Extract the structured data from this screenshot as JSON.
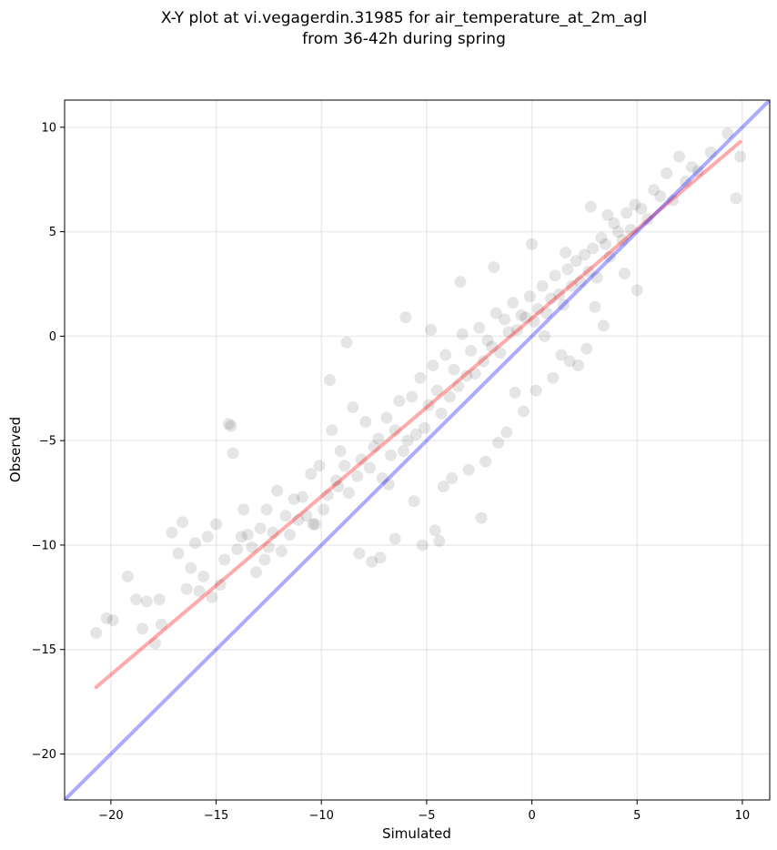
{
  "chart_data": {
    "type": "scatter",
    "title_lines": [
      "X-Y plot at vi.vegagerdin.31985 for air_temperature_at_2m_agl",
      "from 36-42h during spring"
    ],
    "xlabel": "Simulated",
    "ylabel": "Observed",
    "xlim": [
      -22.2,
      11.3
    ],
    "ylim": [
      -22.2,
      11.3
    ],
    "xticks": [
      -20,
      -15,
      -10,
      -5,
      0,
      5,
      10
    ],
    "yticks": [
      -20,
      -15,
      -10,
      -5,
      0,
      5,
      10
    ],
    "tick_labels": {
      "x": [
        "−20",
        "−15",
        "−10",
        "−5",
        "0",
        "5",
        "10"
      ],
      "y": [
        "−20",
        "−15",
        "−10",
        "−5",
        "0",
        "5",
        "10"
      ]
    },
    "grid": true,
    "colors": {
      "points": "#000000",
      "fit_line": "#ff0000",
      "identity_line": "#0000ff"
    },
    "series": [
      {
        "kind": "points",
        "x": [
          -20.7,
          -20.2,
          -19.9,
          -19.2,
          -18.8,
          -18.5,
          -18.3,
          -17.9,
          -17.7,
          -17.6,
          -17.1,
          -16.8,
          -16.6,
          -16.4,
          -16.2,
          -16.0,
          -15.8,
          -15.6,
          -15.4,
          -15.2,
          -15.0,
          -14.8,
          -14.6,
          -14.3,
          -14.2,
          -14.0,
          -13.7,
          -13.5,
          -13.3,
          -13.1,
          -12.9,
          -12.7,
          -12.5,
          -12.3,
          -12.1,
          -11.9,
          -11.7,
          -11.5,
          -11.3,
          -11.1,
          -10.9,
          -10.7,
          -10.5,
          -10.3,
          -10.1,
          -9.9,
          -9.7,
          -9.5,
          -9.3,
          -9.1,
          -8.9,
          -8.7,
          -8.5,
          -8.3,
          -8.1,
          -7.9,
          -7.7,
          -7.5,
          -7.3,
          -7.1,
          -6.9,
          -6.7,
          -6.5,
          -6.3,
          -6.1,
          -5.9,
          -5.7,
          -5.5,
          -5.3,
          -5.1,
          -4.9,
          -4.7,
          -4.5,
          -4.3,
          -4.1,
          -3.9,
          -3.7,
          -3.5,
          -3.3,
          -3.1,
          -2.9,
          -2.7,
          -2.5,
          -2.3,
          -2.1,
          -1.9,
          -1.7,
          -1.5,
          -1.3,
          -1.1,
          -0.9,
          -0.7,
          -0.5,
          -0.3,
          -0.1,
          0.1,
          0.3,
          0.5,
          0.7,
          0.9,
          1.1,
          1.3,
          1.5,
          1.7,
          1.9,
          2.1,
          2.3,
          2.5,
          2.7,
          2.9,
          3.1,
          3.3,
          3.5,
          3.7,
          3.9,
          4.1,
          4.3,
          4.5,
          4.7,
          4.9,
          5.2,
          5.5,
          5.8,
          6.1,
          6.4,
          6.7,
          7.0,
          7.3,
          7.6,
          7.9,
          8.5,
          9.3,
          9.7,
          9.9,
          -9.6,
          -8.8,
          -7.6,
          -6.5,
          -5.2,
          -4.6,
          -3.8,
          -2.4,
          -1.6,
          -0.8,
          0.6,
          1.8,
          2.6,
          3.4,
          -12.6,
          -10.4,
          -8.2,
          -6.8,
          -5.6,
          -4.2,
          -3.0,
          -1.2,
          0.2,
          1.4,
          -14.4,
          -13.8,
          -9.2,
          -7.2,
          -4.4,
          -2.2,
          -0.4,
          1.0,
          2.2,
          3.0,
          -6.0,
          -4.8,
          -3.4,
          -1.8,
          0.0,
          1.6,
          2.8,
          3.6,
          4.4,
          5.0
        ],
        "y": [
          -14.2,
          -13.5,
          -13.6,
          -11.5,
          -12.6,
          -14.0,
          -12.7,
          -14.7,
          -12.6,
          -13.8,
          -9.4,
          -10.4,
          -8.9,
          -12.1,
          -11.1,
          -9.9,
          -12.2,
          -11.5,
          -9.6,
          -12.5,
          -9.0,
          -11.9,
          -10.7,
          -4.3,
          -5.6,
          -10.2,
          -8.3,
          -9.5,
          -10.1,
          -11.3,
          -9.2,
          -10.7,
          -10.1,
          -9.4,
          -7.4,
          -10.3,
          -8.6,
          -9.5,
          -7.8,
          -8.8,
          -7.7,
          -8.6,
          -6.6,
          -9.0,
          -6.2,
          -8.3,
          -7.6,
          -4.5,
          -6.9,
          -5.5,
          -6.2,
          -7.5,
          -3.4,
          -6.7,
          -5.9,
          -4.1,
          -6.3,
          -5.3,
          -4.9,
          -6.8,
          -3.9,
          -5.7,
          -4.5,
          -3.1,
          -5.5,
          -5.0,
          -2.9,
          -4.7,
          -2.0,
          -4.4,
          -3.3,
          -1.4,
          -2.6,
          -3.7,
          -0.9,
          -2.9,
          -1.6,
          -2.4,
          0.1,
          -1.9,
          -0.7,
          -1.8,
          0.4,
          -1.2,
          -0.2,
          -0.5,
          1.1,
          -0.8,
          0.8,
          0.2,
          1.6,
          0.3,
          1.0,
          0.9,
          1.9,
          0.7,
          1.3,
          2.4,
          1.1,
          1.8,
          2.9,
          2.0,
          1.5,
          3.2,
          2.4,
          3.6,
          2.6,
          3.9,
          3.1,
          4.2,
          2.8,
          4.7,
          4.4,
          3.8,
          5.4,
          5.0,
          4.6,
          5.9,
          5.1,
          6.3,
          6.1,
          5.6,
          7.0,
          6.7,
          7.8,
          6.5,
          8.6,
          7.4,
          8.1,
          7.9,
          8.8,
          9.7,
          6.6,
          8.6,
          -2.1,
          -0.3,
          -10.8,
          -9.7,
          -10.0,
          -9.3,
          -6.8,
          -8.7,
          -5.1,
          -2.7,
          0.0,
          -1.2,
          -0.6,
          0.5,
          -8.3,
          -9.0,
          -10.4,
          -7.1,
          -7.9,
          -7.2,
          -6.4,
          -4.6,
          -2.6,
          -0.9,
          -4.2,
          -9.6,
          -7.2,
          -10.6,
          -9.8,
          -6.0,
          -3.6,
          -2.0,
          -1.4,
          1.4,
          0.9,
          0.3,
          2.6,
          3.3,
          4.4,
          4.0,
          6.2,
          5.8,
          3.0,
          2.2
        ]
      },
      {
        "kind": "fit_line",
        "x": [
          -20.7,
          9.9
        ],
        "y": [
          -16.8,
          9.3
        ]
      },
      {
        "kind": "identity_line",
        "x": [
          -22.2,
          11.3
        ],
        "y": [
          -22.2,
          11.3
        ]
      }
    ]
  }
}
